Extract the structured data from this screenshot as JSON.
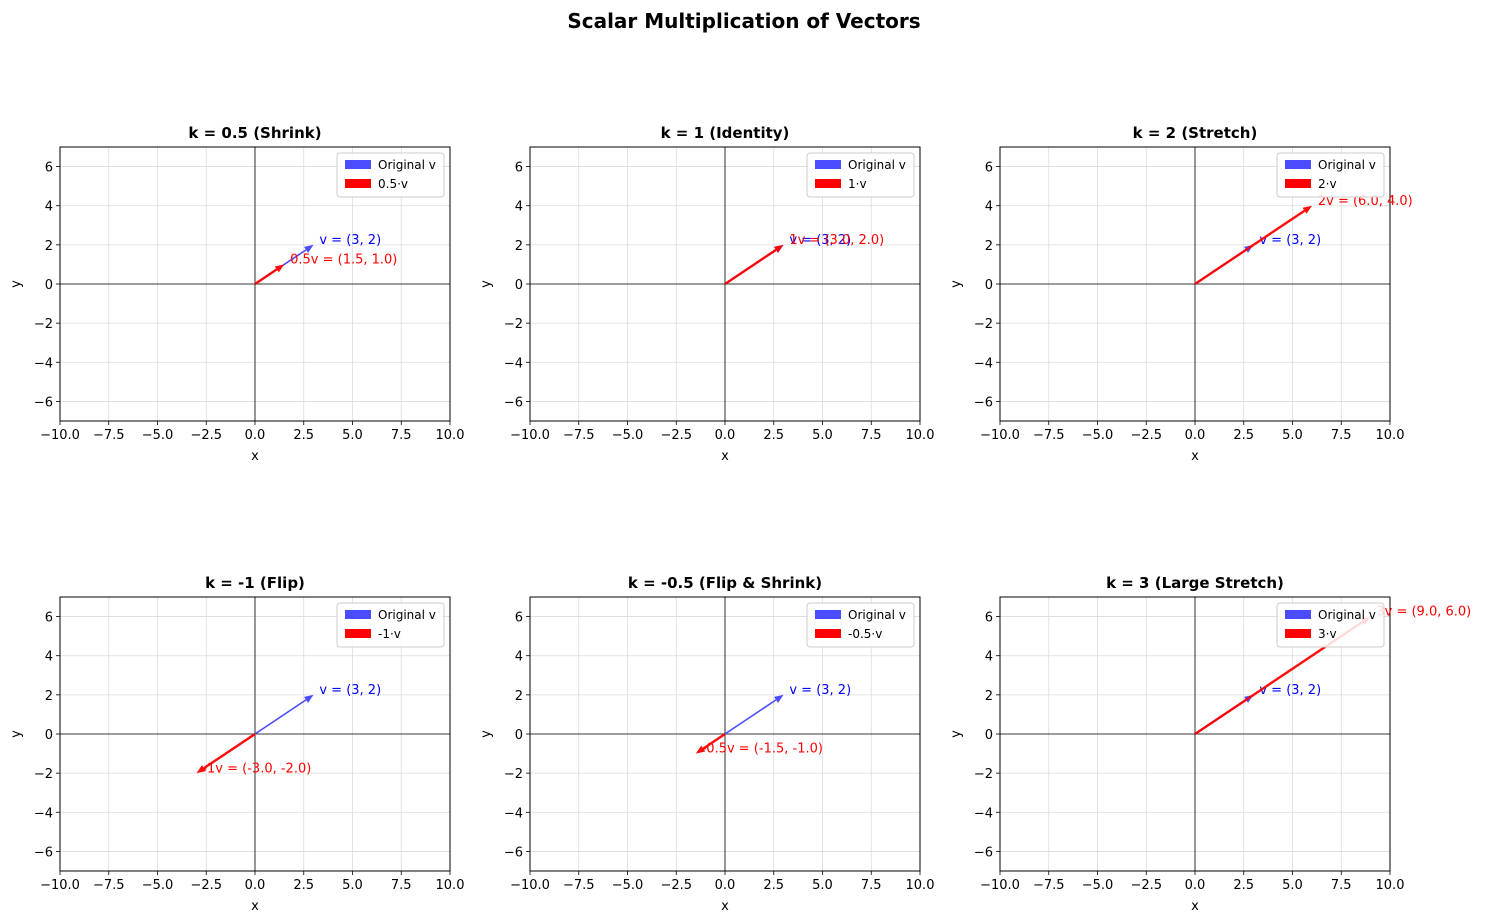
{
  "figure": {
    "suptitle": "Scalar Multiplication of Vectors"
  },
  "chart_data": [
    {
      "type": "vector",
      "title": "k = 0.5 (Shrink)",
      "xlabel": "x",
      "ylabel": "y",
      "xlim": [
        -10,
        10
      ],
      "ylim": [
        -7,
        7
      ],
      "xticks": [
        -10,
        -7.5,
        -5,
        -2.5,
        0,
        2.5,
        5,
        7.5,
        10
      ],
      "xtick_labels": [
        "−10.0",
        "−7.5",
        "−5.0",
        "−2.5",
        "0.0",
        "2.5",
        "5.0",
        "7.5",
        "10.0"
      ],
      "yticks": [
        -6,
        -4,
        -2,
        0,
        2,
        4,
        6
      ],
      "ytick_labels": [
        "−6",
        "−4",
        "−2",
        "0",
        "2",
        "4",
        "6"
      ],
      "grid": true,
      "legend_position": "upper right",
      "series": [
        {
          "name": "Original v",
          "color": "#4b4bff",
          "start": [
            0,
            0
          ],
          "end": [
            3,
            2
          ],
          "label": "v = (3, 2)",
          "label_at": [
            3.3,
            2.3
          ]
        },
        {
          "name": "0.5·v",
          "color": "#ff0000",
          "start": [
            0,
            0
          ],
          "end": [
            1.5,
            1.0
          ],
          "label": "0.5v = (1.5, 1.0)",
          "label_at": [
            1.8,
            1.3
          ]
        }
      ]
    },
    {
      "type": "vector",
      "title": "k = 1 (Identity)",
      "xlabel": "x",
      "ylabel": "y",
      "xlim": [
        -10,
        10
      ],
      "ylim": [
        -7,
        7
      ],
      "xticks": [
        -10,
        -7.5,
        -5,
        -2.5,
        0,
        2.5,
        5,
        7.5,
        10
      ],
      "xtick_labels": [
        "−10.0",
        "−7.5",
        "−5.0",
        "−2.5",
        "0.0",
        "2.5",
        "5.0",
        "7.5",
        "10.0"
      ],
      "yticks": [
        -6,
        -4,
        -2,
        0,
        2,
        4,
        6
      ],
      "ytick_labels": [
        "−6",
        "−4",
        "−2",
        "0",
        "2",
        "4",
        "6"
      ],
      "grid": true,
      "legend_position": "upper right",
      "series": [
        {
          "name": "Original v",
          "color": "#4b4bff",
          "start": [
            0,
            0
          ],
          "end": [
            3,
            2
          ],
          "label": "v = (3, 2)",
          "label_at": [
            3.3,
            2.3
          ]
        },
        {
          "name": "1·v",
          "color": "#ff0000",
          "start": [
            0,
            0
          ],
          "end": [
            3.0,
            2.0
          ],
          "label": "1v = (3.0, 2.0)",
          "label_at": [
            3.3,
            2.3
          ]
        }
      ]
    },
    {
      "type": "vector",
      "title": "k = 2 (Stretch)",
      "xlabel": "x",
      "ylabel": "y",
      "xlim": [
        -10,
        10
      ],
      "ylim": [
        -7,
        7
      ],
      "xticks": [
        -10,
        -7.5,
        -5,
        -2.5,
        0,
        2.5,
        5,
        7.5,
        10
      ],
      "xtick_labels": [
        "−10.0",
        "−7.5",
        "−5.0",
        "−2.5",
        "0.0",
        "2.5",
        "5.0",
        "7.5",
        "10.0"
      ],
      "yticks": [
        -6,
        -4,
        -2,
        0,
        2,
        4,
        6
      ],
      "ytick_labels": [
        "−6",
        "−4",
        "−2",
        "0",
        "2",
        "4",
        "6"
      ],
      "grid": true,
      "legend_position": "upper right",
      "series": [
        {
          "name": "Original v",
          "color": "#4b4bff",
          "start": [
            0,
            0
          ],
          "end": [
            3,
            2
          ],
          "label": "v = (3, 2)",
          "label_at": [
            3.3,
            2.3
          ]
        },
        {
          "name": "2·v",
          "color": "#ff0000",
          "start": [
            0,
            0
          ],
          "end": [
            6.0,
            4.0
          ],
          "label": "2v = (6.0, 4.0)",
          "label_at": [
            6.3,
            4.3
          ]
        }
      ]
    },
    {
      "type": "vector",
      "title": "k = -1 (Flip)",
      "xlabel": "x",
      "ylabel": "y",
      "xlim": [
        -10,
        10
      ],
      "ylim": [
        -7,
        7
      ],
      "xticks": [
        -10,
        -7.5,
        -5,
        -2.5,
        0,
        2.5,
        5,
        7.5,
        10
      ],
      "xtick_labels": [
        "−10.0",
        "−7.5",
        "−5.0",
        "−2.5",
        "0.0",
        "2.5",
        "5.0",
        "7.5",
        "10.0"
      ],
      "yticks": [
        -6,
        -4,
        -2,
        0,
        2,
        4,
        6
      ],
      "ytick_labels": [
        "−6",
        "−4",
        "−2",
        "0",
        "2",
        "4",
        "6"
      ],
      "grid": true,
      "legend_position": "upper right",
      "series": [
        {
          "name": "Original v",
          "color": "#4b4bff",
          "start": [
            0,
            0
          ],
          "end": [
            3,
            2
          ],
          "label": "v = (3, 2)",
          "label_at": [
            3.3,
            2.3
          ]
        },
        {
          "name": "-1·v",
          "color": "#ff0000",
          "start": [
            0,
            0
          ],
          "end": [
            -3.0,
            -2.0
          ],
          "label": "-1v = (-3.0, -2.0)",
          "label_at": [
            -2.7,
            -1.7
          ]
        }
      ]
    },
    {
      "type": "vector",
      "title": "k = -0.5 (Flip & Shrink)",
      "xlabel": "x",
      "ylabel": "y",
      "xlim": [
        -10,
        10
      ],
      "ylim": [
        -7,
        7
      ],
      "xticks": [
        -10,
        -7.5,
        -5,
        -2.5,
        0,
        2.5,
        5,
        7.5,
        10
      ],
      "xtick_labels": [
        "−10.0",
        "−7.5",
        "−5.0",
        "−2.5",
        "0.0",
        "2.5",
        "5.0",
        "7.5",
        "10.0"
      ],
      "yticks": [
        -6,
        -4,
        -2,
        0,
        2,
        4,
        6
      ],
      "ytick_labels": [
        "−6",
        "−4",
        "−2",
        "0",
        "2",
        "4",
        "6"
      ],
      "grid": true,
      "legend_position": "upper right",
      "series": [
        {
          "name": "Original v",
          "color": "#4b4bff",
          "start": [
            0,
            0
          ],
          "end": [
            3,
            2
          ],
          "label": "v = (3, 2)",
          "label_at": [
            3.3,
            2.3
          ]
        },
        {
          "name": "-0.5·v",
          "color": "#ff0000",
          "start": [
            0,
            0
          ],
          "end": [
            -1.5,
            -1.0
          ],
          "label": "-0.5v = (-1.5, -1.0)",
          "label_at": [
            -1.2,
            -0.7
          ]
        }
      ]
    },
    {
      "type": "vector",
      "title": "k = 3 (Large Stretch)",
      "xlabel": "x",
      "ylabel": "y",
      "xlim": [
        -10,
        10
      ],
      "ylim": [
        -7,
        7
      ],
      "xticks": [
        -10,
        -7.5,
        -5,
        -2.5,
        0,
        2.5,
        5,
        7.5,
        10
      ],
      "xtick_labels": [
        "−10.0",
        "−7.5",
        "−5.0",
        "−2.5",
        "0.0",
        "2.5",
        "5.0",
        "7.5",
        "10.0"
      ],
      "yticks": [
        -6,
        -4,
        -2,
        0,
        2,
        4,
        6
      ],
      "ytick_labels": [
        "−6",
        "−4",
        "−2",
        "0",
        "2",
        "4",
        "6"
      ],
      "grid": true,
      "legend_position": "upper right",
      "series": [
        {
          "name": "Original v",
          "color": "#4b4bff",
          "start": [
            0,
            0
          ],
          "end": [
            3,
            2
          ],
          "label": "v = (3, 2)",
          "label_at": [
            3.3,
            2.3
          ]
        },
        {
          "name": "3·v",
          "color": "#ff0000",
          "start": [
            0,
            0
          ],
          "end": [
            9.0,
            6.0
          ],
          "label": "3v = (9.0, 6.0)",
          "label_at": [
            9.3,
            6.3
          ]
        }
      ]
    }
  ]
}
